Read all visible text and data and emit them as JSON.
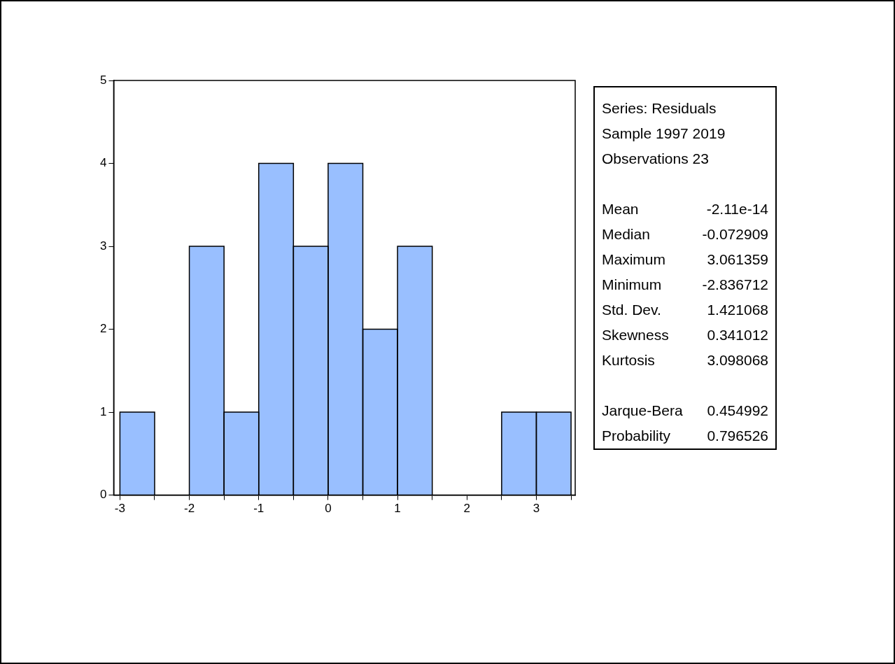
{
  "chart_data": {
    "type": "histogram",
    "bins": [
      -3,
      -2.5,
      -2,
      -1.5,
      -1,
      -0.5,
      0,
      0.5,
      1,
      1.5,
      2,
      2.5,
      3,
      3.5
    ],
    "values": [
      1,
      0,
      3,
      1,
      4,
      3,
      4,
      2,
      3,
      0,
      0,
      1,
      1
    ],
    "color": "#99bfff",
    "xlim": [
      -3.09,
      3.56
    ],
    "xticks": [
      -3,
      {
        "value": -2.5,
        "label": null
      },
      -2,
      {
        "value": -1.5,
        "label": null
      },
      -1,
      {
        "value": -0.5,
        "label": null
      },
      0,
      {
        "value": 0.5,
        "label": null
      },
      1,
      {
        "value": 1.5,
        "label": null
      },
      2,
      {
        "value": 2.5,
        "label": null
      },
      3,
      {
        "value": 3.5,
        "label": null
      }
    ],
    "ylim": [
      0,
      5
    ],
    "yticks": [
      0,
      1,
      2,
      3,
      4,
      5
    ],
    "grid": false,
    "annotations": [
      "Series: Residuals",
      "Sample 1997 2019",
      "Observations 23",
      "Mean",
      "-2.11e-14",
      "Median",
      "-0.072909",
      "Maximum",
      "3.061359",
      "Minimum",
      "-2.836712",
      "Std. Dev.",
      "1.421068",
      "Skewness",
      "0.341012",
      "Kurtosis",
      "3.098068",
      "Jarque-Bera",
      "0.454992",
      "Probability",
      "0.796526"
    ]
  }
}
